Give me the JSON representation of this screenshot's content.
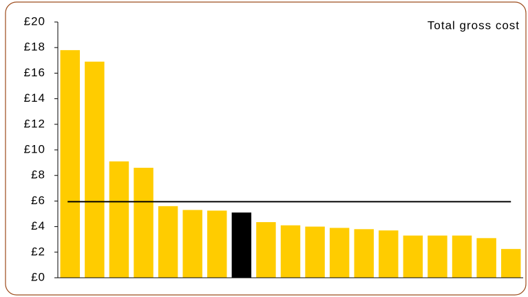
{
  "chart_data": {
    "type": "bar",
    "title": "Total gross cost",
    "categories": [
      null,
      null,
      null,
      null,
      null,
      null,
      null,
      null,
      null,
      null,
      null,
      null,
      null,
      null,
      null,
      null,
      null,
      null,
      null
    ],
    "values": [
      17.8,
      16.9,
      9.1,
      8.6,
      5.6,
      5.3,
      5.25,
      5.1,
      4.35,
      4.1,
      4.0,
      3.9,
      3.8,
      3.7,
      3.3,
      3.3,
      3.3,
      3.1,
      2.25
    ],
    "colors": [
      "#ffcc00",
      "#ffcc00",
      "#ffcc00",
      "#ffcc00",
      "#ffcc00",
      "#ffcc00",
      "#ffcc00",
      "#000000",
      "#ffcc00",
      "#ffcc00",
      "#ffcc00",
      "#ffcc00",
      "#ffcc00",
      "#ffcc00",
      "#ffcc00",
      "#ffcc00",
      "#ffcc00",
      "#ffcc00",
      "#ffcc00"
    ],
    "reference_line": {
      "value": 5.95,
      "color": "#000000"
    },
    "ylim": [
      0,
      20
    ],
    "yticks": [
      {
        "value": 0,
        "label": "£0"
      },
      {
        "value": 2,
        "label": "£2"
      },
      {
        "value": 4,
        "label": "£4"
      },
      {
        "value": 6,
        "label": "£6"
      },
      {
        "value": 8,
        "label": "£8"
      },
      {
        "value": 10,
        "label": "£10"
      },
      {
        "value": 12,
        "label": "£12"
      },
      {
        "value": 14,
        "label": "£14"
      },
      {
        "value": 16,
        "label": "£16"
      },
      {
        "value": 18,
        "label": "£18"
      },
      {
        "value": 20,
        "label": "£20"
      }
    ],
    "grid": false
  }
}
